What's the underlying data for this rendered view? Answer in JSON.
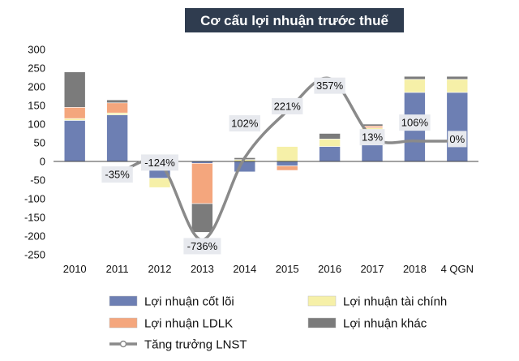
{
  "chart_data": {
    "type": "bar",
    "stacked": true,
    "title": "Cơ cấu lợi nhuận trước thuế",
    "categories": [
      "2010",
      "2011",
      "2012",
      "2013",
      "2014",
      "2015",
      "2016",
      "2017",
      "2018",
      "4 QGN"
    ],
    "ylim": [
      -250,
      300
    ],
    "yticks": [
      300,
      250,
      200,
      150,
      100,
      50,
      0,
      -50,
      -100,
      -150,
      -200,
      -250
    ],
    "series": [
      {
        "name": "Lợi nhuận cốt lõi",
        "color": "#6d7fb3",
        "values": [
          110,
          125,
          -45,
          -5,
          -28,
          -12,
          40,
          45,
          185,
          185
        ]
      },
      {
        "name": "Lợi nhuận tài chính",
        "color": "#f6f0a8",
        "values": [
          5,
          5,
          -25,
          0,
          5,
          40,
          20,
          45,
          35,
          35
        ]
      },
      {
        "name": "Lợi nhuận LDLK",
        "color": "#f4a67d",
        "values": [
          30,
          27,
          0,
          -108,
          0,
          -12,
          0,
          5,
          0,
          0
        ]
      },
      {
        "name": "Lợi nhuận khác",
        "color": "#7b7b7b",
        "values": [
          95,
          8,
          0,
          -77,
          5,
          0,
          15,
          5,
          8,
          8
        ]
      }
    ],
    "line": {
      "name": "Tăng trưởng LNST",
      "color": "#8a8a8a",
      "plot_values": [
        null,
        -35,
        -5,
        -210,
        10,
        135,
        222,
        65,
        55,
        55
      ],
      "labels": [
        "",
        "-35%",
        "-124%",
        "-736%",
        "102%",
        "221%",
        "357%",
        "13%",
        "106%",
        "0%"
      ],
      "label_values": [
        null,
        -35,
        -3,
        -227,
        102,
        148,
        203,
        65,
        104,
        60
      ]
    },
    "legend": "bottom",
    "grid": false
  }
}
